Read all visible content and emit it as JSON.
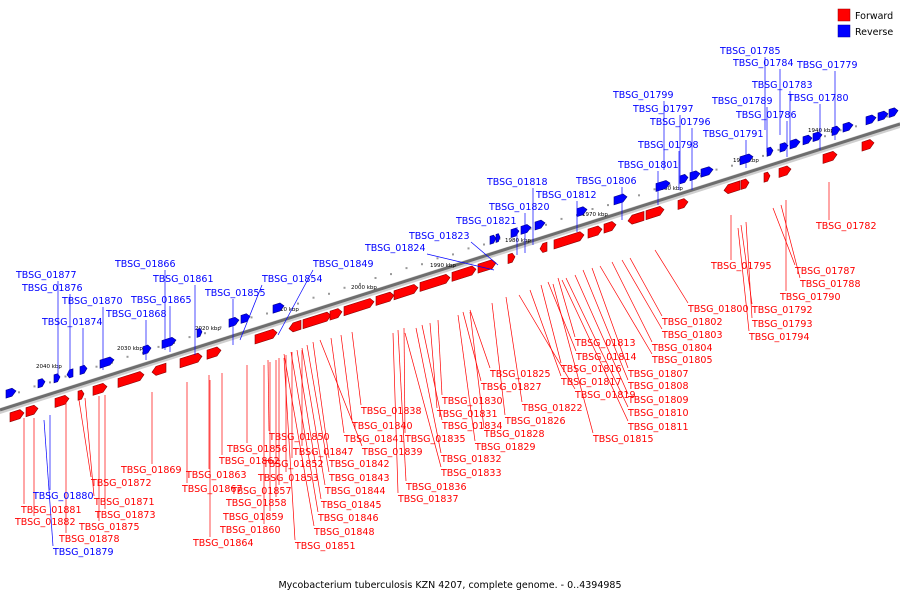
{
  "legend": {
    "forward_label": "Forward",
    "reverse_label": "Reverse",
    "forward_color": "#ff0000",
    "reverse_color": "#0000ff"
  },
  "caption": "Mycobacterium tuberculosis KZN 4207, complete genome. - 0..4394985",
  "ticks": [
    "2040 kbp",
    "2030 kbp",
    "2020 kbp",
    "2010 kbp",
    "2000 kbp",
    "1990 kbp",
    "1980 kbp",
    "1970 kbp",
    "1960 kbp",
    "1950 kbp",
    "1940 kbp"
  ],
  "reverse_genes": [
    "TBSG_01785",
    "TBSG_01784",
    "TBSG_01779",
    "TBSG_01783",
    "TBSG_01799",
    "TBSG_01789",
    "TBSG_01780",
    "TBSG_01797",
    "TBSG_01786",
    "TBSG_01796",
    "TBSG_01791",
    "TBSG_01798",
    "TBSG_01801",
    "TBSG_01806",
    "TBSG_01818",
    "TBSG_01812",
    "TBSG_01820",
    "TBSG_01821",
    "TBSG_01823",
    "TBSG_01824",
    "TBSG_01849",
    "TBSG_01866",
    "TBSG_01861",
    "TBSG_01877",
    "TBSG_01854",
    "TBSG_01876",
    "TBSG_01855",
    "TBSG_01870",
    "TBSG_01865",
    "TBSG_01868",
    "TBSG_01874",
    "TBSG_01880",
    "TBSG_01879"
  ],
  "forward_genes": [
    "TBSG_01782",
    "TBSG_01795",
    "TBSG_01787",
    "TBSG_01788",
    "TBSG_01790",
    "TBSG_01800",
    "TBSG_01792",
    "TBSG_01802",
    "TBSG_01793",
    "TBSG_01803",
    "TBSG_01794",
    "TBSG_01804",
    "TBSG_01813",
    "TBSG_01805",
    "TBSG_01814",
    "TBSG_01816",
    "TBSG_01807",
    "TBSG_01825",
    "TBSG_01817",
    "TBSG_01808",
    "TBSG_01827",
    "TBSG_01819",
    "TBSG_01809",
    "TBSG_01830",
    "TBSG_01822",
    "TBSG_01810",
    "TBSG_01838",
    "TBSG_01831",
    "TBSG_01826",
    "TBSG_01834",
    "TBSG_01811",
    "TBSG_01840",
    "TBSG_01828",
    "TBSG_01850",
    "TBSG_01841",
    "TBSG_01835",
    "TBSG_01815",
    "TBSG_01856",
    "TBSG_01847",
    "TBSG_01839",
    "TBSG_01829",
    "TBSG_01862",
    "TBSG_01852",
    "TBSG_01842",
    "TBSG_01832",
    "TBSG_01869",
    "TBSG_01863",
    "TBSG_01853",
    "TBSG_01843",
    "TBSG_01833",
    "TBSG_01872",
    "TBSG_01867",
    "TBSG_01857",
    "TBSG_01844",
    "TBSG_01836",
    "TBSG_01871",
    "TBSG_01858",
    "TBSG_01845",
    "TBSG_01837",
    "TBSG_01881",
    "TBSG_01873",
    "TBSG_01859",
    "TBSG_01846",
    "TBSG_01882",
    "TBSG_01875",
    "TBSG_01860",
    "TBSG_01848",
    "TBSG_01878",
    "TBSG_01864",
    "TBSG_01851"
  ]
}
